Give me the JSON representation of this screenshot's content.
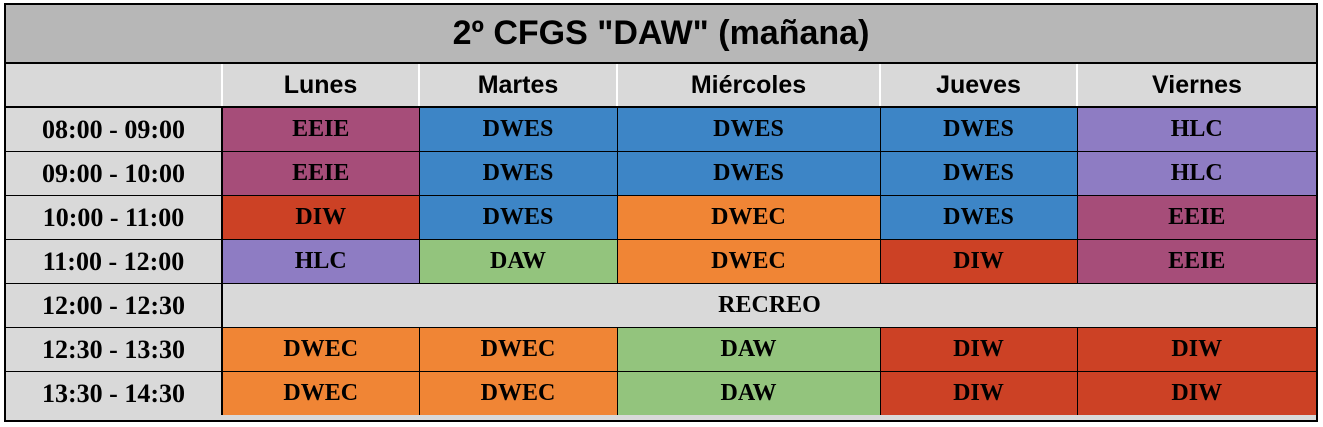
{
  "title": "2º CFGS \"DAW\" (mañana)",
  "days": [
    "Lunes",
    "Martes",
    "Miércoles",
    "Jueves",
    "Viernes"
  ],
  "rows": [
    {
      "time": "08:00 - 09:00",
      "cells": [
        "EEIE",
        "DWES",
        "DWES",
        "DWES",
        "HLC"
      ]
    },
    {
      "time": "09:00 - 10:00",
      "cells": [
        "EEIE",
        "DWES",
        "DWES",
        "DWES",
        "HLC"
      ]
    },
    {
      "time": "10:00 - 11:00",
      "cells": [
        "DIW",
        "DWES",
        "DWEC",
        "DWES",
        "EEIE"
      ]
    },
    {
      "time": "11:00 - 12:00",
      "cells": [
        "HLC",
        "DAW",
        "DWEC",
        "DIW",
        "EEIE"
      ]
    },
    {
      "time": "12:00 - 12:30",
      "break": "RECREO"
    },
    {
      "time": "12:30 - 13:30",
      "cells": [
        "DWEC",
        "DWEC",
        "DAW",
        "DIW",
        "DIW"
      ]
    },
    {
      "time": "13:30 - 14:30",
      "cells": [
        "DWEC",
        "DWEC",
        "DAW",
        "DIW",
        "DIW"
      ]
    }
  ],
  "subject_colors": {
    "EEIE": "#a64d79",
    "DWES": "#3d85c6",
    "HLC": "#8e7cc3",
    "DIW": "#cc4125",
    "DWEC": "#f08535",
    "DAW": "#93c47d",
    "RECREO": "#d9d9d9"
  }
}
